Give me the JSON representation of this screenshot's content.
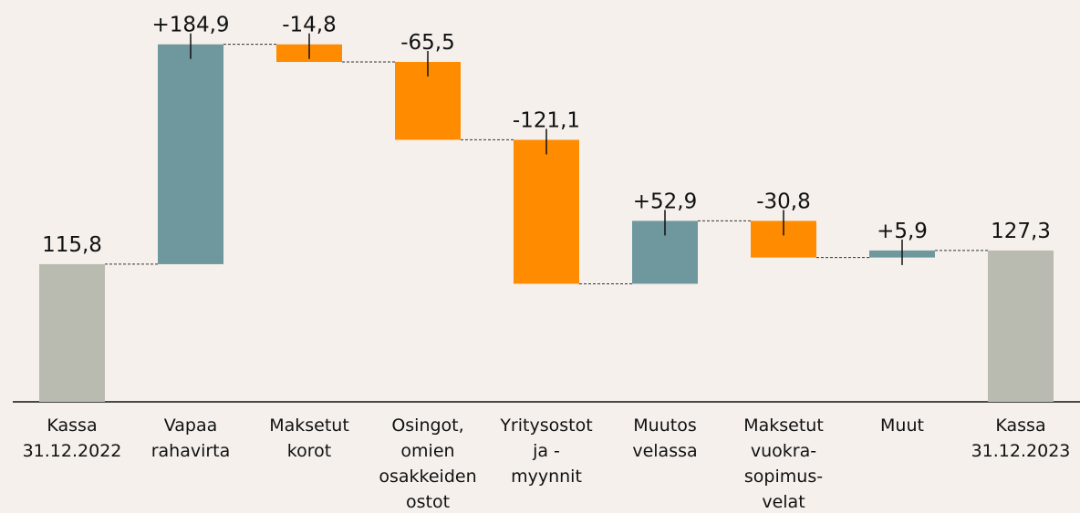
{
  "chart_data": {
    "type": "waterfall",
    "categories": [
      [
        "Kassa",
        "31.12.2022"
      ],
      [
        "Vapaa",
        "rahavirta"
      ],
      [
        "Maksetut",
        "korot"
      ],
      [
        "Osingot,",
        "omien",
        "osakkeiden",
        "ostot"
      ],
      [
        "Yritysostot",
        "ja -",
        "myynnit"
      ],
      [
        "Muutos",
        "velassa"
      ],
      [
        "Maksetut",
        "vuokra-",
        "sopimus-",
        "velat"
      ],
      [
        "Muut"
      ],
      [
        "Kassa",
        "31.12.2023"
      ]
    ],
    "values": [
      115.8,
      184.9,
      -14.8,
      -65.5,
      -121.1,
      52.9,
      -30.8,
      5.9,
      127.3
    ],
    "value_labels": [
      "115,8",
      "+184,9",
      "-14,8",
      "-65,5",
      "-121,1",
      "+52,9",
      "-30,8",
      "+5,9",
      "127,3"
    ],
    "colors": {
      "total": "#b9bbb1",
      "increase": "#6e979e",
      "decrease": "#ff8c00"
    },
    "ylim": [
      0,
      338
    ]
  }
}
